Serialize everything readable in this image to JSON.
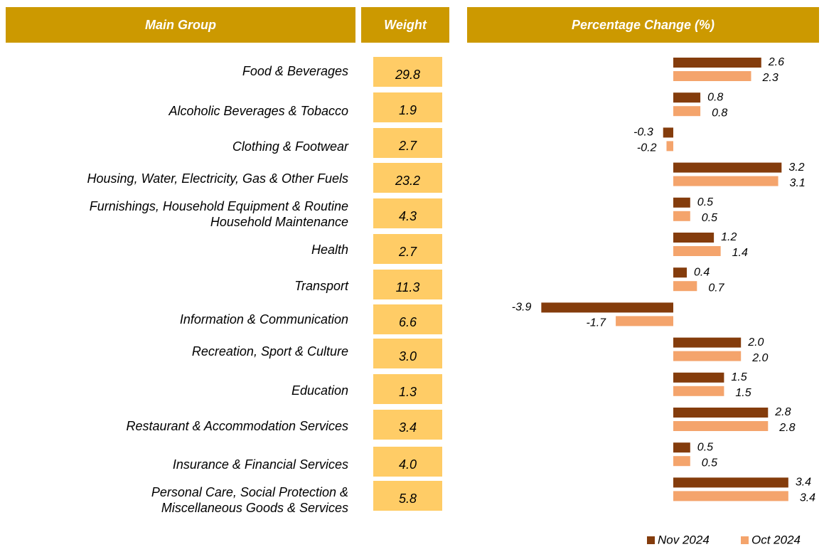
{
  "chart_data": {
    "type": "bar",
    "orientation": "horizontal",
    "headers": [
      "Main Group",
      "Weight",
      "Percentage Change (%)"
    ],
    "categories": [
      "Food & Beverages",
      "Alcoholic Beverages & Tobacco",
      "Clothing & Footwear",
      "Housing, Water, Electricity, Gas & Other Fuels",
      "Furnishings, Household Equipment & Routine\nHousehold Maintenance",
      "Health",
      "Transport",
      "Information & Communication",
      "Recreation, Sport & Culture",
      "Education",
      "Restaurant & Accommodation Services",
      "Insurance & Financial Services",
      "Personal Care, Social Protection &\nMiscellaneous Goods & Services"
    ],
    "weights": [
      "29.8",
      "1.9",
      "2.7",
      "23.2",
      "4.3",
      "2.7",
      "11.3",
      "6.6",
      "3.0",
      "1.3",
      "3.4",
      "4.0",
      "5.8"
    ],
    "weight_color": "#ffcc66",
    "header_color": "#cc9900",
    "series": [
      {
        "name": "Nov 2024",
        "color": "#843c0c",
        "values": [
          2.6,
          0.8,
          -0.3,
          3.2,
          0.5,
          1.2,
          0.4,
          -3.9,
          2.0,
          1.5,
          2.8,
          0.5,
          3.4
        ],
        "value_labels": [
          "2.6",
          "0.8",
          "-0.3",
          "3.2",
          "0.5",
          "1.2",
          "0.4",
          "-3.9",
          "2.0",
          "1.5",
          "2.8",
          "0.5",
          "3.4"
        ]
      },
      {
        "name": "Oct 2024",
        "color": "#f4a46c",
        "values": [
          2.3,
          0.8,
          -0.2,
          3.1,
          0.5,
          1.4,
          0.7,
          -1.7,
          2.0,
          1.5,
          2.8,
          0.5,
          3.4
        ],
        "value_labels": [
          "2.3",
          "0.8",
          "-0.2",
          "3.1",
          "0.5",
          "1.4",
          "0.7",
          "-1.7",
          "2.0",
          "1.5",
          "2.8",
          "0.5",
          "3.4"
        ]
      }
    ],
    "legend": "bottom-right"
  }
}
